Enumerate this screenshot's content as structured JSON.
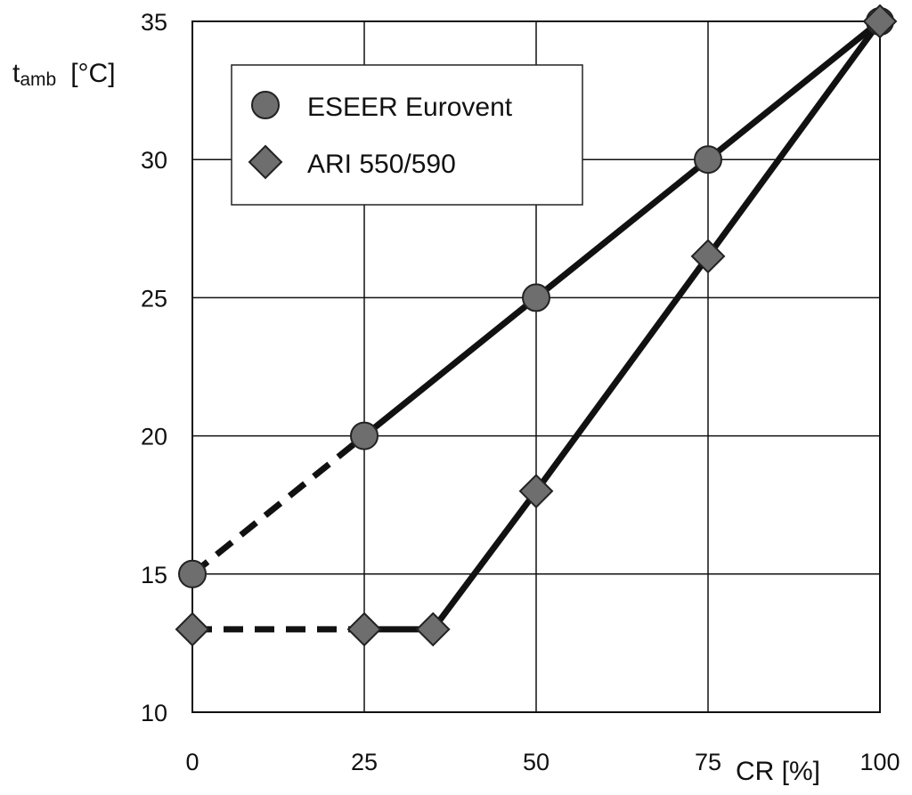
{
  "chart_data": {
    "type": "line",
    "title": "",
    "xlabel": "CR [%]",
    "ylabel": {
      "main": "t",
      "sub": "amb",
      "unit": "[°C]"
    },
    "xlim": [
      0,
      100
    ],
    "ylim": [
      10,
      35
    ],
    "x_ticks": [
      0,
      25,
      50,
      75,
      100
    ],
    "y_ticks": [
      10,
      15,
      20,
      25,
      30,
      35
    ],
    "grid": true,
    "legend_position": "top-left",
    "series": [
      {
        "name": "ESEER Eurovent",
        "marker": "circle",
        "color": "#6e6e6e",
        "points": [
          {
            "x": 0,
            "y": 15,
            "style": "dashed"
          },
          {
            "x": 25,
            "y": 20,
            "style": "solid"
          },
          {
            "x": 50,
            "y": 25,
            "style": "solid"
          },
          {
            "x": 75,
            "y": 30,
            "style": "solid"
          },
          {
            "x": 100,
            "y": 35,
            "style": "solid"
          }
        ]
      },
      {
        "name": "ARI 550/590",
        "marker": "diamond",
        "color": "#6e6e6e",
        "points": [
          {
            "x": 0,
            "y": 13,
            "style": "dashed"
          },
          {
            "x": 25,
            "y": 13,
            "style": "solid"
          },
          {
            "x": 35,
            "y": 13,
            "style": "solid"
          },
          {
            "x": 50,
            "y": 18,
            "style": "solid"
          },
          {
            "x": 75,
            "y": 26.5,
            "style": "solid"
          },
          {
            "x": 100,
            "y": 35,
            "style": "solid"
          }
        ]
      }
    ]
  }
}
